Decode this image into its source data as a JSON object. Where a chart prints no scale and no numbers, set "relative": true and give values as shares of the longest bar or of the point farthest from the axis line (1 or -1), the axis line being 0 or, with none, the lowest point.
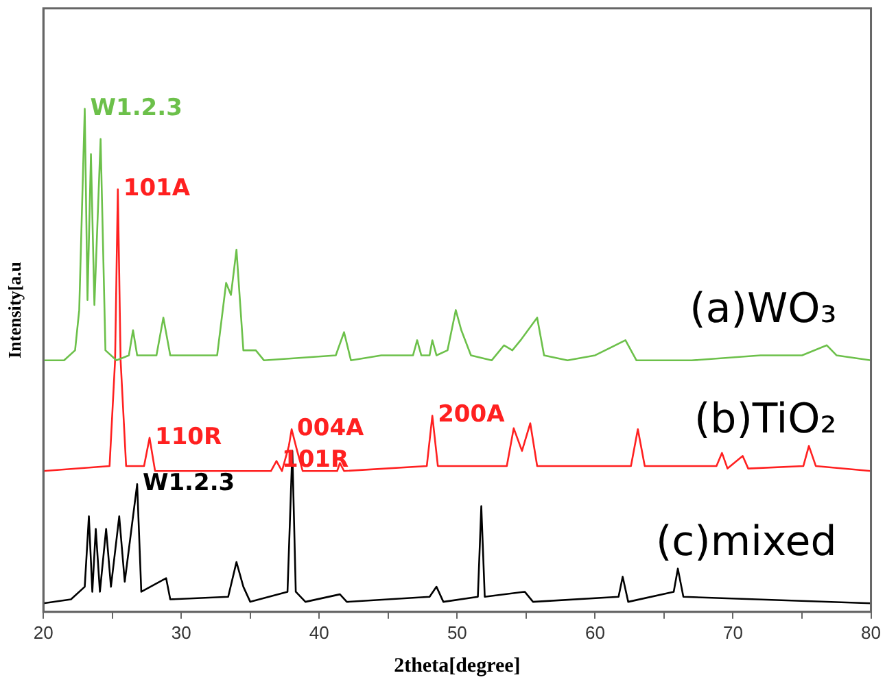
{
  "chart_data": {
    "type": "line",
    "relative": true,
    "xlabel": "2theta[degree]",
    "ylabel": "Intensity[a.u",
    "xlim": [
      20,
      80
    ],
    "xticks": [
      20,
      {
        "value": 25,
        "label": null
      },
      30,
      {
        "value": 35,
        "label": null
      },
      40,
      {
        "value": 45,
        "label": null
      },
      50,
      {
        "value": 55,
        "label": null
      },
      60,
      {
        "value": 65,
        "label": null
      },
      70,
      {
        "value": 75,
        "label": null
      },
      80
    ],
    "grid": false,
    "legend": false,
    "marker": "none",
    "line_style": "solid",
    "series": [
      {
        "name": "(a)WO₃",
        "color": "#6cc04a",
        "x": [
          20,
          21.5,
          22.3,
          22.6,
          23.0,
          23.2,
          23.45,
          23.7,
          24.15,
          24.5,
          25.3,
          26.2,
          26.5,
          26.8,
          28.2,
          28.7,
          29.2,
          32.6,
          33.25,
          33.6,
          34.0,
          34.5,
          35.4,
          36,
          41.2,
          41.8,
          42.3,
          44.5,
          46.8,
          47.1,
          47.4,
          48.0,
          48.2,
          48.5,
          49.3,
          49.9,
          50.3,
          51,
          52.5,
          53.4,
          54,
          54.6,
          55.8,
          56.3,
          58,
          60,
          62.2,
          63,
          67,
          72,
          75,
          76.8,
          77.5,
          80
        ],
        "values": [
          0.5,
          0.5,
          0.52,
          0.6,
          1.0,
          0.62,
          0.91,
          0.61,
          0.94,
          0.52,
          0.5,
          0.51,
          0.56,
          0.51,
          0.51,
          0.585,
          0.51,
          0.51,
          0.654,
          0.63,
          0.72,
          0.52,
          0.52,
          0.5,
          0.51,
          0.556,
          0.5,
          0.51,
          0.51,
          0.54,
          0.51,
          0.51,
          0.54,
          0.51,
          0.52,
          0.6,
          0.56,
          0.51,
          0.5,
          0.53,
          0.52,
          0.54,
          0.585,
          0.51,
          0.5,
          0.51,
          0.54,
          0.5,
          0.5,
          0.51,
          0.51,
          0.53,
          0.51,
          0.5
        ]
      },
      {
        "name": "(b)TiO₂",
        "color": "#ff2020",
        "x": [
          20,
          24.8,
          25.2,
          25.4,
          25.6,
          26,
          27.3,
          27.7,
          28.1,
          36.5,
          36.9,
          37.3,
          37.8,
          38.0,
          38.4,
          38.8,
          41.3,
          41.5,
          41.8,
          47.8,
          48.2,
          48.6,
          53.6,
          54.1,
          54.7,
          55.3,
          55.8,
          62.6,
          63.1,
          63.6,
          68.8,
          69.2,
          69.6,
          70.7,
          71.1,
          75.1,
          75.5,
          76,
          80
        ],
        "values": [
          0.28,
          0.29,
          0.5,
          0.84,
          0.5,
          0.29,
          0.29,
          0.346,
          0.28,
          0.28,
          0.3,
          0.28,
          0.33,
          0.363,
          0.32,
          0.28,
          0.28,
          0.296,
          0.28,
          0.29,
          0.39,
          0.29,
          0.29,
          0.365,
          0.32,
          0.375,
          0.29,
          0.29,
          0.363,
          0.29,
          0.29,
          0.316,
          0.285,
          0.31,
          0.285,
          0.29,
          0.33,
          0.29,
          0.28
        ]
      },
      {
        "name": "(c)mixed",
        "color": "#000000",
        "x": [
          20,
          22,
          23.0,
          23.3,
          23.55,
          23.8,
          24.1,
          24.55,
          24.9,
          25.5,
          25.9,
          26.8,
          27.1,
          28.9,
          29.2,
          33.4,
          34.0,
          34.5,
          35,
          37.7,
          38.05,
          38.3,
          39,
          41.5,
          42,
          48.0,
          48.5,
          49,
          51.5,
          51.75,
          52.0,
          54.9,
          55.5,
          61.7,
          62.0,
          62.4,
          65.7,
          66.0,
          66.4,
          80
        ],
        "values": [
          0.017,
          0.025,
          0.05,
          0.19,
          0.04,
          0.165,
          0.04,
          0.165,
          0.05,
          0.19,
          0.06,
          0.254,
          0.04,
          0.067,
          0.025,
          0.03,
          0.099,
          0.05,
          0.02,
          0.04,
          0.32,
          0.04,
          0.02,
          0.035,
          0.02,
          0.03,
          0.05,
          0.02,
          0.03,
          0.21,
          0.03,
          0.04,
          0.02,
          0.03,
          0.07,
          0.02,
          0.04,
          0.086,
          0.03,
          0.017
        ]
      }
    ],
    "annotations": [
      {
        "text": "W1.2.3",
        "x": 23.0,
        "y": 1.0
      },
      {
        "text": "101A",
        "x": 25.4,
        "y": 0.84
      },
      {
        "text": "110R",
        "x": 27.7,
        "y": 0.346
      },
      {
        "text": "101R",
        "x": 36.9,
        "y": 0.3
      },
      {
        "text": "004A",
        "x": 38.0,
        "y": 0.363
      },
      {
        "text": "200A",
        "x": 48.2,
        "y": 0.39
      },
      {
        "text": "W1.2.3",
        "x": 26.8,
        "y": 0.254
      }
    ]
  }
}
